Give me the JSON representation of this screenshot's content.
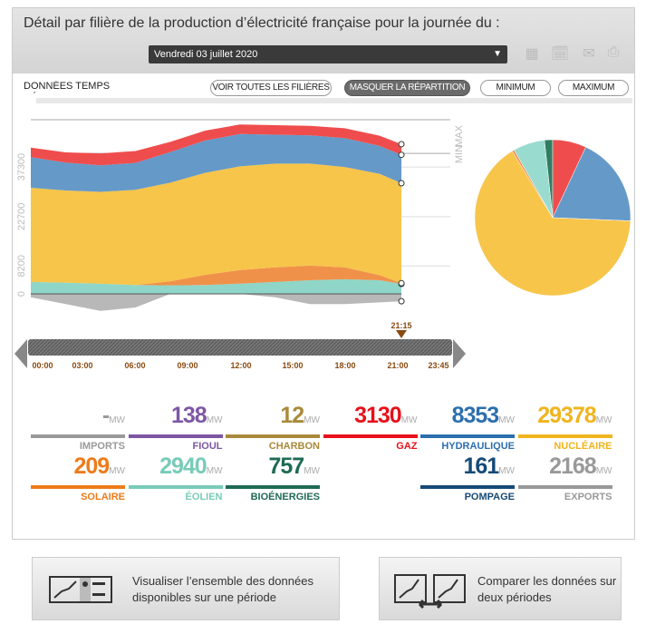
{
  "header": {
    "title": "Détail par filière de la production d’électricité française pour la journée du :",
    "date": "Vendredi 03 juillet 2020",
    "icons": [
      "calendar-icon",
      "calendar-a-icon",
      "email-icon",
      "print-icon"
    ]
  },
  "toolbar": {
    "subtitle": "DONNÉES TEMPS RÉEL",
    "show_all": "VOIR TOUTES LES FILIÈRES",
    "hide_split": "MASQUER LA RÉPARTITION",
    "minimum": "MINIMUM",
    "maximum": "MAXIMUM"
  },
  "chart_data": {
    "type": "area",
    "stacked": true,
    "x_hours": [
      0,
      2,
      4,
      6,
      8,
      10,
      12,
      14,
      16,
      18,
      20,
      21.25
    ],
    "yticks": [
      "0",
      "8200",
      "22700",
      "37300"
    ],
    "ref_lines": [
      "MAX",
      "MIN"
    ],
    "xticks": [
      "00:00",
      "03:00",
      "06:00",
      "09:00",
      "12:00",
      "15:00",
      "18:00",
      "21:00",
      "23:45"
    ],
    "cursor": "21:15",
    "series": [
      {
        "name": "Éolien",
        "color": "#8fd6c8",
        "values": [
          3500,
          3300,
          3000,
          2600,
          2500,
          2600,
          3000,
          3500,
          4000,
          4300,
          4000,
          2940
        ]
      },
      {
        "name": "Solaire",
        "color": "#f0914a",
        "values": [
          0,
          0,
          0,
          0,
          1200,
          3000,
          4000,
          4300,
          4300,
          3500,
          1500,
          209
        ]
      },
      {
        "name": "Nucléaire",
        "color": "#f6c54a",
        "values": [
          27700,
          27100,
          27000,
          28000,
          29000,
          30000,
          30500,
          30500,
          30000,
          29500,
          29800,
          29378
        ]
      },
      {
        "name": "Hydraulique",
        "color": "#6599c8",
        "values": [
          9000,
          8200,
          7800,
          7900,
          9000,
          9500,
          9500,
          8500,
          8300,
          8500,
          8200,
          8353
        ]
      },
      {
        "name": "Gaz",
        "color": "#ef4d4d",
        "values": [
          2800,
          3000,
          3500,
          3500,
          3000,
          2900,
          2800,
          2800,
          2800,
          2900,
          3000,
          3130
        ]
      },
      {
        "name": "Exports",
        "color": "#b8b8b8",
        "values": [
          -1000,
          -3000,
          -5000,
          -4000,
          0,
          0,
          0,
          -1000,
          -3000,
          -3000,
          -2500,
          -2168
        ]
      }
    ],
    "pie": [
      {
        "name": "Bioénergies",
        "value": 757,
        "color": "#2f7d62"
      },
      {
        "name": "Gaz",
        "value": 3130,
        "color": "#ef4d4d"
      },
      {
        "name": "Hydraulique",
        "value": 8353,
        "color": "#6599c8"
      },
      {
        "name": "Nucléaire",
        "value": 29378,
        "color": "#f6c54a"
      },
      {
        "name": "Solaire",
        "value": 209,
        "color": "#f0914a"
      },
      {
        "name": "Éolien",
        "value": 2940,
        "color": "#9adbd0"
      }
    ]
  },
  "unit": "MW",
  "kpis": [
    {
      "value": "-",
      "label": "IMPORTS",
      "color": "#999999"
    },
    {
      "value": "138",
      "label": "FIOUL",
      "color": "#7d57a3"
    },
    {
      "value": "12",
      "label": "CHARBON",
      "color": "#a88a3a"
    },
    {
      "value": "3130",
      "label": "GAZ",
      "color": "#e8101a"
    },
    {
      "value": "8353",
      "label": "HYDRAULIQUE",
      "color": "#2c6fae"
    },
    {
      "value": "29378",
      "label": "NUCLÉAIRE",
      "color": "#f0b41e"
    },
    {
      "value": "209",
      "label": "SOLAIRE",
      "color": "#ee7b19"
    },
    {
      "value": "2940",
      "label": "ÉOLIEN",
      "color": "#78cbb8"
    },
    {
      "value": "757",
      "label": "BIOÉNERGIES",
      "color": "#1f6a55"
    },
    {
      "value": "161",
      "label": "POMPAGE",
      "color": "#164a77"
    },
    {
      "value": "2168",
      "label": "EXPORTS",
      "color": "#999999"
    }
  ],
  "buttons": {
    "visualize": "Visualiser l’ensemble des données disponibles sur une période",
    "compare": "Comparer les données sur deux périodes"
  }
}
